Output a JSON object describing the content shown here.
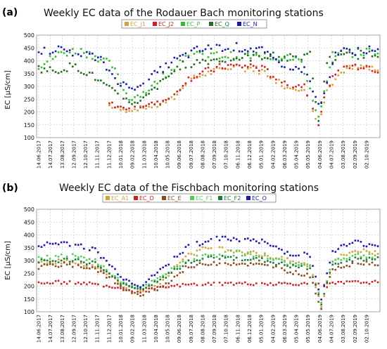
{
  "figure": {
    "background": "#ffffff"
  },
  "chart_data": [
    {
      "panel_label": "(a)",
      "type": "scatter",
      "title": "Weekly EC data of the Rodauer Bach monitoring stations",
      "xlabel": "",
      "ylabel": "EC [µS/cm]",
      "ylim": [
        100,
        500
      ],
      "yticks": [
        "100",
        "150",
        "200",
        "250",
        "300",
        "350",
        "400",
        "450",
        "500"
      ],
      "grid": true,
      "legend_position": "top",
      "x_tick_labels": [
        "14.06.2017",
        "14.07.2017",
        "13.08.2017",
        "12.09.2017",
        "12.10.2017",
        "11.11.2017",
        "11.12.2017",
        "10.01.2018",
        "09.02.2018",
        "11.03.2018",
        "10.04.2018",
        "10.05.2018",
        "09.06.2018",
        "09.07.2018",
        "08.08.2018",
        "07.09.2018",
        "07.10.2018",
        "06.11.2018",
        "06.12.2018",
        "05.01.2019",
        "04.02.2019",
        "06.03.2019",
        "05.04.2019",
        "05.05.2019",
        "04.06.2019",
        "04.07.2019",
        "03.08.2019",
        "02.09.2019",
        "02.10.2019"
      ],
      "series": [
        {
          "name": "EC_J1",
          "color": "#d4a23c",
          "values": [
            null,
            null,
            null,
            null,
            null,
            null,
            null,
            null,
            null,
            null,
            null,
            null,
            null,
            null,
            null,
            null,
            null,
            null,
            null,
            null,
            null,
            null,
            null,
            null,
            null,
            null,
            null,
            null,
            null,
            null,
            null,
            null,
            null,
            null,
            null,
            null,
            null,
            null,
            null,
            null,
            null,
            null,
            null,
            null,
            null,
            null,
            null,
            null,
            null,
            null,
            null,
            null,
            null,
            null,
            null,
            null,
            null,
            null,
            null,
            null,
            null,
            null,
            null,
            null,
            null,
            null,
            null,
            null,
            null,
            null,
            null,
            null,
            null,
            null,
            null,
            null,
            null,
            null,
            null,
            null,
            null,
            null,
            null,
            null,
            null,
            null,
            null,
            null,
            null,
            null,
            null,
            null,
            null,
            null,
            null,
            null,
            null,
            null,
            null,
            null,
            null,
            null,
            null,
            null,
            null,
            null,
            null,
            null,
            null,
            null,
            null,
            null,
            null,
            null,
            null,
            null,
            null,
            null,
            null,
            null,
            null
          ]
        },
        {
          "name": "EC_J2",
          "color": "#cc2222",
          "values": []
        },
        {
          "name": "EC_P",
          "color": "#33bb33",
          "values": []
        },
        {
          "name": "EC_Q",
          "color": "#1e6e1e",
          "values": []
        },
        {
          "name": "EC_N",
          "color": "#1a1aa8",
          "values": []
        }
      ]
    },
    {
      "panel_label": "(b)",
      "type": "scatter",
      "title": "Weekly EC data of the Fischbach monitoring stations",
      "xlabel": "",
      "ylabel": "EC [µS/cm]",
      "ylim": [
        100,
        500
      ],
      "yticks": [
        "100",
        "150",
        "200",
        "250",
        "300",
        "350",
        "400",
        "450",
        "500"
      ],
      "grid": true,
      "legend_position": "top",
      "x_tick_labels": [
        "14.06.2017",
        "14.07.2017",
        "13.08.2017",
        "12.09.2017",
        "12.10.2017",
        "11.11.2017",
        "11.12.2017",
        "10.01.2018",
        "09.02.2018",
        "11.03.2018",
        "10.04.2018",
        "10.05.2018",
        "09.06.2018",
        "09.07.2018",
        "08.08.2018",
        "07.09.2018",
        "07.10.2018",
        "06.11.2018",
        "06.12.2018",
        "05.01.2019",
        "04.02.2019",
        "06.03.2019",
        "05.04.2019",
        "05.05.2019",
        "04.06.2019",
        "04.07.2019",
        "03.08.2019",
        "02.09.2019",
        "02.10.2019"
      ],
      "series": [
        {
          "name": "EC_A1",
          "color": "#d4a23c",
          "values": []
        },
        {
          "name": "EC_D",
          "color": "#cc2222",
          "values": []
        },
        {
          "name": "EC_E",
          "color": "#8a4a1a",
          "values": []
        },
        {
          "name": "EC_F1",
          "color": "#55cc55",
          "values": []
        },
        {
          "name": "EC_F2",
          "color": "#1e7a3a",
          "values": []
        },
        {
          "name": "EC_O",
          "color": "#1a1aa8",
          "values": []
        }
      ]
    }
  ]
}
